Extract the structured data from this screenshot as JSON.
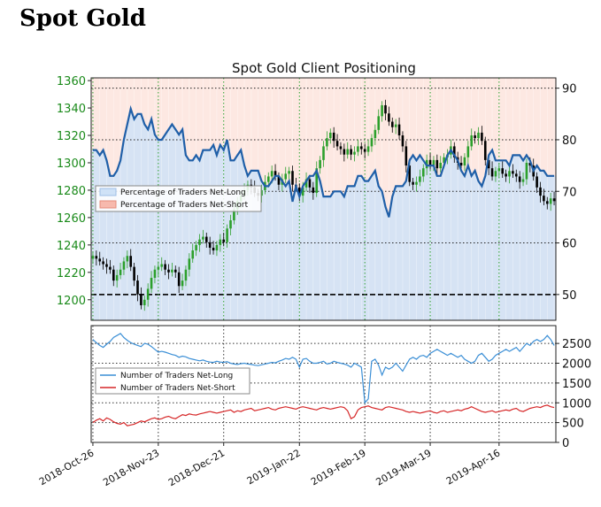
{
  "page": {
    "title": "Spot Gold"
  },
  "chart_data": [
    {
      "type": "candlestick+line",
      "title": "Spot Gold Client Positioning",
      "left_axis": {
        "ylim": [
          1185,
          1362
        ],
        "ticks": [
          "1200",
          "1220",
          "1240",
          "1260",
          "1280",
          "1300",
          "1320",
          "1340",
          "1360"
        ]
      },
      "right_axis": {
        "ylim": [
          45,
          92
        ],
        "ticks": [
          "50",
          "60",
          "70",
          "80",
          "90"
        ]
      },
      "x_ticks": [
        "2018-Oct-26",
        "2018-Nov-23",
        "2018-Dec-21",
        "2019-Jan-22",
        "2019-Feb-19",
        "2019-Mar-19",
        "2019-Apr-16"
      ],
      "legend": {
        "placement": "center-left",
        "entries": [
          "Percentage of Traders Net-Long",
          "Percentage of Traders Net-Short"
        ]
      },
      "colors": {
        "up": "#2ca02c",
        "down": "#000000",
        "net_long": "#1f5fa8",
        "band_long": "#cfe2f7",
        "band_short": "#fde8e2"
      },
      "grid": true,
      "price_close": [
        1232,
        1230,
        1228,
        1226,
        1224,
        1222,
        1214,
        1218,
        1222,
        1228,
        1232,
        1224,
        1214,
        1204,
        1196,
        1200,
        1208,
        1216,
        1222,
        1224,
        1226,
        1222,
        1220,
        1222,
        1220,
        1210,
        1214,
        1222,
        1230,
        1236,
        1240,
        1244,
        1246,
        1242,
        1238,
        1236,
        1240,
        1244,
        1242,
        1252,
        1258,
        1266,
        1272,
        1276,
        1280,
        1284,
        1282,
        1278,
        1276,
        1280,
        1286,
        1290,
        1294,
        1290,
        1284,
        1288,
        1292,
        1294,
        1284,
        1282,
        1276,
        1282,
        1288,
        1282,
        1278,
        1296,
        1302,
        1312,
        1318,
        1322,
        1316,
        1312,
        1310,
        1306,
        1310,
        1306,
        1308,
        1312,
        1310,
        1308,
        1312,
        1318,
        1324,
        1334,
        1342,
        1336,
        1330,
        1326,
        1328,
        1320,
        1312,
        1298,
        1286,
        1284,
        1286,
        1290,
        1296,
        1302,
        1298,
        1302,
        1296,
        1300,
        1304,
        1306,
        1312,
        1304,
        1300,
        1298,
        1304,
        1312,
        1320,
        1318,
        1322,
        1316,
        1302,
        1296,
        1290,
        1294,
        1296,
        1292,
        1290,
        1294,
        1292,
        1290,
        1286,
        1288,
        1300,
        1298,
        1290,
        1282,
        1276,
        1272,
        1270,
        1274,
        1272
      ],
      "net_long_pct": [
        78,
        78,
        77,
        78,
        76,
        73,
        73,
        74,
        76,
        80,
        83,
        86,
        84,
        85,
        85,
        83,
        82,
        84,
        81,
        80,
        80,
        81,
        82,
        83,
        82,
        81,
        82,
        77,
        76,
        76,
        77,
        76,
        78,
        78,
        78,
        79,
        77,
        79,
        78,
        80,
        76,
        76,
        77,
        78,
        75,
        73,
        74,
        74,
        74,
        72,
        71,
        71,
        72,
        73,
        73,
        72,
        71,
        72,
        68,
        71,
        69,
        71,
        72,
        73,
        73,
        74,
        72,
        69,
        69,
        69,
        70,
        70,
        70,
        69,
        71,
        71,
        71,
        73,
        73,
        72,
        72,
        73,
        74,
        71,
        70,
        67,
        65,
        69,
        71,
        71,
        71,
        72,
        76,
        77,
        76,
        77,
        76,
        75,
        75,
        75,
        73,
        73,
        75,
        77,
        78,
        77,
        76,
        74,
        73,
        75,
        73,
        74,
        72,
        71,
        73,
        77,
        78,
        76,
        76,
        76,
        76,
        75,
        77,
        77,
        77,
        76,
        77,
        76,
        74,
        75,
        74,
        74,
        73,
        73,
        73
      ]
    },
    {
      "type": "line",
      "ylim": [
        0,
        2950
      ],
      "y_ticks": [
        "0",
        "500",
        "1000",
        "1500",
        "2000",
        "2500"
      ],
      "legend": {
        "placement": "center-left",
        "entries": [
          "Number of Traders Net-Long",
          "Number of Traders Net-Short"
        ]
      },
      "series": [
        {
          "name": "Number of Traders Net-Long",
          "color": "#3b8fd6",
          "values": [
            2600,
            2520,
            2450,
            2400,
            2480,
            2550,
            2650,
            2700,
            2750,
            2650,
            2580,
            2520,
            2480,
            2450,
            2420,
            2500,
            2480,
            2420,
            2350,
            2280,
            2300,
            2280,
            2250,
            2220,
            2200,
            2150,
            2180,
            2160,
            2120,
            2100,
            2080,
            2060,
            2080,
            2050,
            2030,
            2020,
            2050,
            2030,
            2020,
            2040,
            2000,
            1980,
            1970,
            1990,
            2000,
            1980,
            1970,
            1950,
            1940,
            1960,
            1980,
            2000,
            2020,
            2010,
            2050,
            2080,
            2120,
            2100,
            2150,
            2100,
            1900,
            2100,
            2120,
            2050,
            2000,
            2000,
            2020,
            2050,
            1980,
            2000,
            2050,
            2020,
            2000,
            1980,
            1950,
            1900,
            2000,
            1950,
            1900,
            1000,
            1100,
            2050,
            2100,
            1950,
            1700,
            1900,
            1850,
            1900,
            2000,
            1900,
            1800,
            1950,
            2100,
            2150,
            2100,
            2180,
            2200,
            2150,
            2250,
            2300,
            2350,
            2300,
            2250,
            2200,
            2250,
            2200,
            2150,
            2200,
            2100,
            2050,
            2000,
            2050,
            2200,
            2250,
            2150,
            2050,
            2100,
            2200,
            2250,
            2300,
            2350,
            2300,
            2350,
            2400,
            2300,
            2400,
            2500,
            2450,
            2550,
            2600,
            2550,
            2600,
            2700,
            2600,
            2450
          ]
        },
        {
          "name": "Number of Traders Net-Short",
          "color": "#d62728",
          "values": [
            500,
            560,
            600,
            540,
            620,
            580,
            520,
            480,
            460,
            500,
            420,
            440,
            460,
            500,
            540,
            520,
            560,
            600,
            620,
            580,
            600,
            640,
            660,
            620,
            600,
            650,
            700,
            680,
            720,
            700,
            690,
            720,
            740,
            760,
            780,
            760,
            740,
            760,
            780,
            800,
            820,
            760,
            800,
            780,
            820,
            840,
            860,
            800,
            820,
            840,
            860,
            880,
            840,
            820,
            860,
            880,
            900,
            880,
            860,
            840,
            880,
            900,
            880,
            860,
            840,
            820,
            860,
            880,
            860,
            840,
            860,
            880,
            900,
            880,
            800,
            600,
            650,
            820,
            880,
            900,
            920,
            880,
            860,
            840,
            820,
            880,
            900,
            880,
            860,
            840,
            820,
            780,
            760,
            780,
            760,
            740,
            760,
            780,
            800,
            760,
            740,
            780,
            800,
            760,
            780,
            800,
            820,
            800,
            840,
            860,
            900,
            860,
            820,
            780,
            760,
            780,
            800,
            760,
            780,
            800,
            820,
            800,
            840,
            860,
            800,
            780,
            820,
            860,
            880,
            900,
            880,
            920,
            940,
            900,
            880
          ]
        }
      ]
    }
  ]
}
